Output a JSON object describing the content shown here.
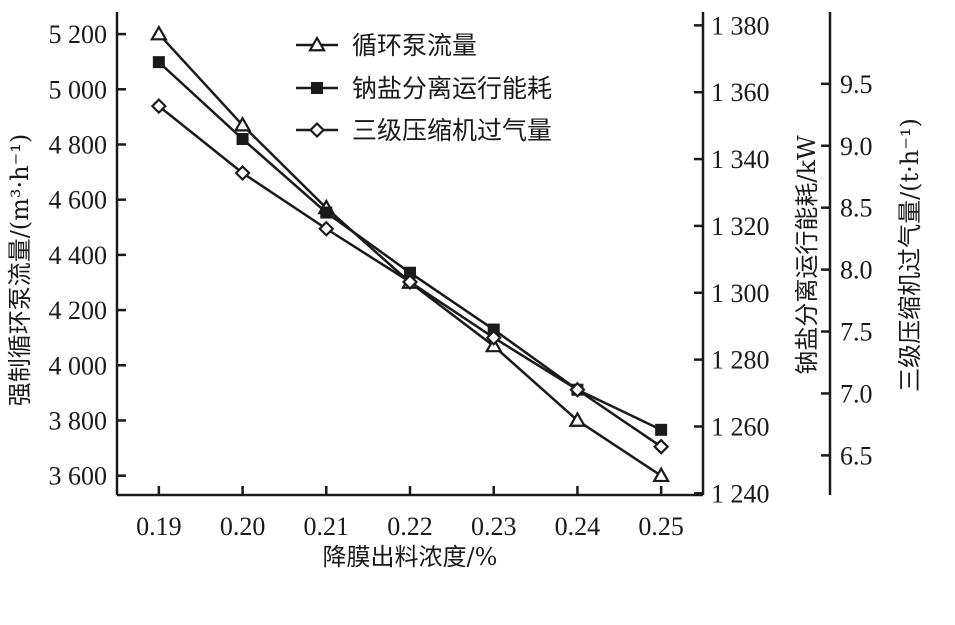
{
  "chart_data": {
    "type": "line",
    "x": [
      0.19,
      0.2,
      0.21,
      0.22,
      0.23,
      0.24,
      0.25
    ],
    "x_tick_labels": [
      "0.19",
      "0.20",
      "0.21",
      "0.22",
      "0.23",
      "0.24",
      "0.25"
    ],
    "xlabel": "降膜出料浓度/%",
    "xlim": [
      0.185,
      0.255
    ],
    "axes": {
      "left": {
        "label": "强制循环泵流量/(m³·h⁻¹)",
        "ylim": [
          3530,
          5280
        ],
        "ticks": [
          3600,
          3800,
          4000,
          4200,
          4400,
          4600,
          4800,
          5000,
          5200
        ],
        "tick_labels": [
          "3 600",
          "3 800",
          "4 000",
          "4 200",
          "4 400",
          "4 600",
          "4 800",
          "5 000",
          "5 200"
        ]
      },
      "right1": {
        "label": "钠盐分离运行能耗/kW",
        "ylim": [
          1239.5,
          1384
        ],
        "ticks": [
          1240,
          1260,
          1280,
          1300,
          1320,
          1340,
          1360,
          1380
        ],
        "tick_labels": [
          "1 240",
          "1 260",
          "1 280",
          "1 300",
          "1 320",
          "1 340",
          "1 360",
          "1 380"
        ]
      },
      "right2": {
        "label": "三级压缩机过气量/(t·h⁻¹)",
        "ylim": [
          6.18,
          10.08
        ],
        "ticks": [
          6.5,
          7.0,
          7.5,
          8.0,
          8.5,
          9.0,
          9.5
        ],
        "tick_labels": [
          "6.5",
          "7.0",
          "7.5",
          "8.0",
          "8.5",
          "9.0",
          "9.5"
        ]
      }
    },
    "series": [
      {
        "name": "循环泵流量",
        "axis": "left",
        "marker": "triangle-open",
        "values": [
          5200,
          4870,
          4570,
          4300,
          4070,
          3800,
          3600
        ]
      },
      {
        "name": "钠盐分离运行能耗",
        "axis": "right1",
        "marker": "square-filled",
        "values": [
          1369,
          1346,
          1324,
          1306,
          1289,
          1271,
          1259
        ]
      },
      {
        "name": "三级压缩机过气量",
        "axis": "right2",
        "marker": "diamond-open",
        "values": [
          9.32,
          8.78,
          8.33,
          7.9,
          7.45,
          7.03,
          6.57
        ]
      }
    ],
    "legend_position": "top-center",
    "grid": false
  }
}
